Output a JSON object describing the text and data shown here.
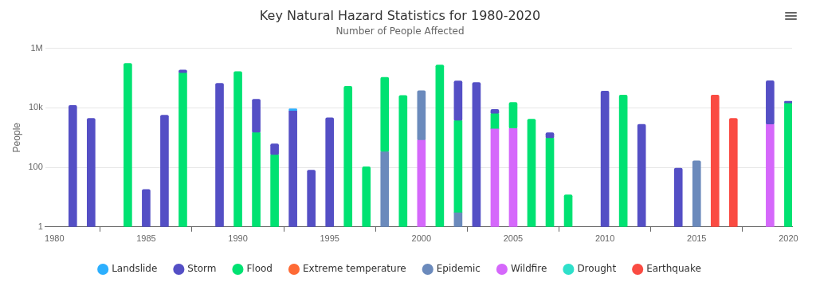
{
  "chart_data": {
    "type": "bar",
    "title": "Key Natural Hazard Statistics for 1980-2020",
    "subtitle": "Number of People Affected",
    "ylabel": "People",
    "x": [
      1981,
      1982,
      1984,
      1985,
      1986,
      1987,
      1989,
      1990,
      1991,
      1992,
      1993,
      1994,
      1995,
      1996,
      1997,
      1998,
      1999,
      2000,
      2001,
      2002,
      2003,
      2004,
      2005,
      2006,
      2007,
      2008,
      2010,
      2011,
      2012,
      2014,
      2015,
      2016,
      2017,
      2019,
      2020
    ],
    "xlim": [
      1979.5,
      2020.2
    ],
    "xticks": [
      1980,
      1985,
      1990,
      1995,
      2000,
      2005,
      2010,
      2015,
      2020
    ],
    "ylim": [
      1,
      1000000
    ],
    "yticks": [
      {
        "value": 1,
        "label": "1"
      },
      {
        "value": 100,
        "label": "100"
      },
      {
        "value": 10000,
        "label": "10k"
      },
      {
        "value": 1000000,
        "label": "1M"
      }
    ],
    "log": "y",
    "grid": "y",
    "legend": "bottom",
    "stacked": true,
    "series": [
      {
        "name": "Earthquake",
        "color": "#fa4b42",
        "values": [
          null,
          null,
          null,
          null,
          null,
          null,
          null,
          null,
          null,
          null,
          null,
          null,
          null,
          null,
          null,
          null,
          null,
          null,
          null,
          null,
          null,
          null,
          null,
          null,
          null,
          null,
          null,
          null,
          null,
          null,
          null,
          27000,
          4400,
          null,
          null
        ]
      },
      {
        "name": "Drought",
        "color": "#2ee0ca",
        "values": [
          null,
          null,
          null,
          null,
          null,
          null,
          null,
          null,
          null,
          null,
          null,
          null,
          null,
          null,
          null,
          null,
          null,
          null,
          null,
          null,
          null,
          null,
          null,
          null,
          null,
          null,
          null,
          null,
          null,
          null,
          null,
          null,
          null,
          null,
          null
        ]
      },
      {
        "name": "Wildfire",
        "color": "#d568fb",
        "values": [
          null,
          null,
          null,
          null,
          null,
          null,
          null,
          null,
          null,
          null,
          null,
          null,
          null,
          null,
          null,
          null,
          null,
          810,
          null,
          null,
          null,
          1950,
          2000,
          null,
          null,
          null,
          null,
          null,
          null,
          null,
          null,
          null,
          null,
          2750,
          null
        ]
      },
      {
        "name": "Epidemic",
        "color": "#6b8abc",
        "values": [
          null,
          null,
          null,
          null,
          null,
          null,
          null,
          null,
          null,
          null,
          null,
          null,
          null,
          null,
          null,
          330,
          null,
          36700,
          null,
          3,
          null,
          null,
          null,
          null,
          null,
          null,
          null,
          null,
          null,
          null,
          165,
          null,
          null,
          null,
          null
        ]
      },
      {
        "name": "Extreme temperature",
        "color": "#fe6a35",
        "values": [
          null,
          null,
          null,
          null,
          null,
          null,
          null,
          null,
          null,
          null,
          null,
          null,
          null,
          null,
          null,
          null,
          null,
          null,
          null,
          null,
          null,
          null,
          null,
          null,
          null,
          null,
          null,
          null,
          null,
          null,
          null,
          null,
          null,
          null,
          null
        ]
      },
      {
        "name": "Flood",
        "color": "#00e272",
        "values": [
          null,
          null,
          310000,
          null,
          null,
          145000,
          null,
          165000,
          1450,
          260,
          null,
          null,
          null,
          53000,
          105,
          106000,
          26000,
          null,
          274000,
          3650,
          null,
          4350,
          13200,
          4150,
          940,
          12,
          null,
          27000,
          null,
          null,
          null,
          null,
          null,
          null,
          14000
        ]
      },
      {
        "name": "Storm",
        "color": "#544fc5",
        "values": [
          12000,
          4400,
          null,
          18,
          5700,
          42000,
          67000,
          null,
          18000,
          360,
          7800,
          80,
          4600,
          null,
          null,
          null,
          null,
          null,
          null,
          77000,
          71000,
          2600,
          null,
          null,
          510,
          null,
          36500,
          null,
          2800,
          94,
          null,
          null,
          null,
          78000,
          2600
        ]
      },
      {
        "name": "Landslide",
        "color": "#2caffe",
        "values": [
          null,
          null,
          null,
          null,
          null,
          null,
          null,
          null,
          null,
          null,
          1400,
          null,
          null,
          null,
          null,
          null,
          null,
          null,
          null,
          null,
          null,
          null,
          null,
          null,
          null,
          null,
          null,
          null,
          null,
          null,
          null,
          null,
          null,
          null,
          null
        ]
      }
    ]
  }
}
